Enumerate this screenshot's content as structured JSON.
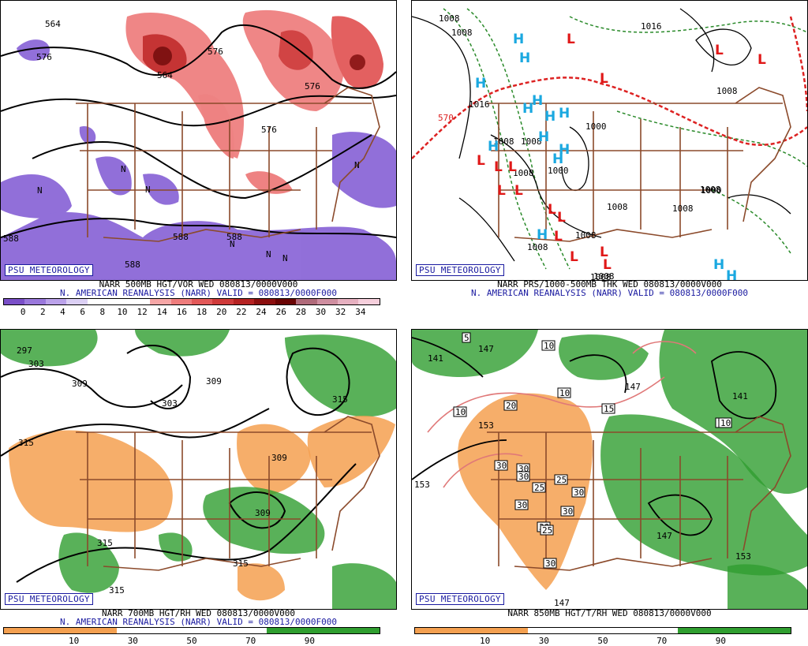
{
  "panels": [
    {
      "badge": "PSU METEOROLOGY",
      "caption1": "NARR 500MB HGT/VOR WED 080813/0000V000",
      "caption2": "N. AMERICAN REANALYSIS (NARR) VALID = 080813/0000F000",
      "colorbar_ticks": [
        "0",
        "2",
        "4",
        "6",
        "8",
        "10",
        "12",
        "14",
        "16",
        "18",
        "20",
        "22",
        "24",
        "26",
        "28",
        "30",
        "32",
        "34"
      ],
      "colorbar_colors": [
        "#7a4fc8",
        "#9a78dc",
        "#bba2ea",
        "#dcd0f5",
        "#ffffff",
        "#ffffff",
        "#ffffff",
        "#f6a6a6",
        "#ee7c7c",
        "#e25858",
        "#cf3a3a",
        "#b52222",
        "#8c0f0f",
        "#6a0404",
        "#b06a7a",
        "#cf8ea0",
        "#e6b0c0",
        "#f6cfdc"
      ],
      "contour_labels": [
        "564",
        "576",
        "564",
        "576",
        "588",
        "588",
        "588",
        "576",
        "588",
        "576"
      ],
      "vortmax_labels": [
        "N",
        "N",
        "N",
        "N",
        "N",
        "N",
        "N"
      ]
    },
    {
      "badge": "PSU METEOROLOGY",
      "caption1": "NARR PRS/1000-500MB THK WED 080813/0000V000",
      "caption2": "N. AMERICAN REANALYSIS (NARR) VALID = 080813/0000F000",
      "contour_labels": [
        "1008",
        "1008",
        "1016",
        "1016",
        "1008",
        "1008",
        "1008",
        "1008",
        "1000",
        "1008",
        "1008",
        "1008",
        "1008",
        "1008",
        "1000",
        "570",
        "1008",
        "1000",
        "1008"
      ],
      "high_symbol": "H",
      "low_symbol": "L",
      "high_color": "#1aa8e0",
      "low_color": "#e01818"
    },
    {
      "badge": "PSU METEOROLOGY",
      "caption1": "NARR 700MB HGT/RH WED 080813/0000V000",
      "caption2": "N. AMERICAN REANALYSIS (NARR) VALID = 080813/0000F000",
      "colorbar_ticks": [
        "10",
        "30",
        "50",
        "70",
        "90"
      ],
      "dry_color": "#f4a050",
      "moist_color": "#2f9e2f",
      "contour_labels": [
        "297",
        "303",
        "309",
        "303",
        "309",
        "309",
        "315",
        "309",
        "315",
        "315",
        "315",
        "315"
      ]
    },
    {
      "badge": "PSU METEOROLOGY",
      "caption1": "NARR 850MB HGT/T/RH WED 080813/0000V000",
      "caption2": "",
      "colorbar_ticks": [
        "10",
        "30",
        "50",
        "70",
        "90"
      ],
      "contour_labels": [
        "5",
        "141",
        "147",
        "153",
        "153",
        "147",
        "147",
        "147",
        "141",
        "153"
      ],
      "temp_labels": [
        "10",
        "10",
        "10",
        "15",
        "20",
        "10",
        "10",
        "30",
        "30",
        "25",
        "30",
        "25",
        "30",
        "30",
        "30",
        "30",
        "25",
        "30"
      ]
    }
  ]
}
